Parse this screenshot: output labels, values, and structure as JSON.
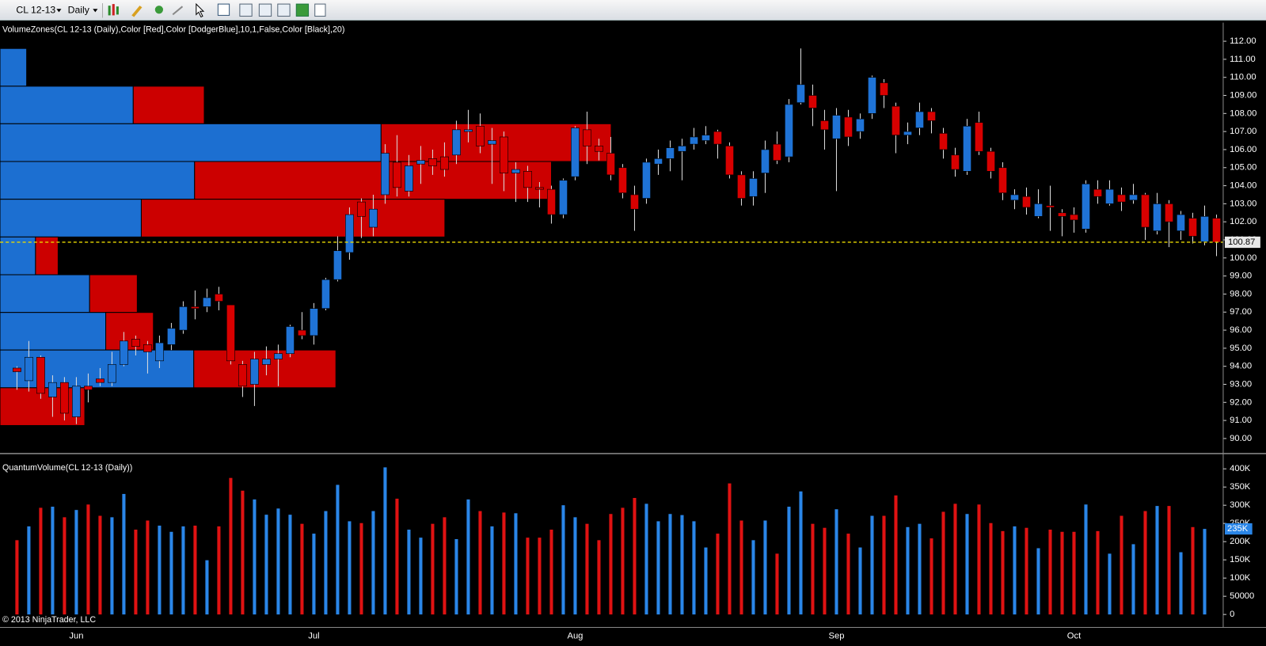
{
  "toolbar": {
    "instrument": "CL 12-13",
    "period": "Daily"
  },
  "footer": "© 2013 NinjaTrader, LLC",
  "chart_data": [
    {
      "type": "candlestick",
      "title": "VolumeZones(CL 12-13 (Daily),Color [Red],Color [DodgerBlue],10,1,False,Color [Black],20)",
      "categories": [
        null,
        null,
        null,
        null,
        null,
        "Jun",
        null,
        null,
        null,
        null,
        null,
        null,
        null,
        null,
        null,
        null,
        null,
        null,
        null,
        null,
        null,
        null,
        null,
        null,
        null,
        "Jul",
        null,
        null,
        null,
        null,
        null,
        null,
        null,
        null,
        null,
        null,
        null,
        null,
        null,
        null,
        null,
        null,
        null,
        null,
        null,
        null,
        null,
        "Aug",
        null,
        null,
        null,
        null,
        null,
        null,
        null,
        null,
        null,
        null,
        null,
        null,
        null,
        null,
        null,
        null,
        null,
        null,
        null,
        null,
        null,
        "Sep",
        null,
        null,
        null,
        null,
        null,
        null,
        null,
        null,
        null,
        null,
        null,
        null,
        null,
        null,
        null,
        null,
        null,
        null,
        null,
        "Oct",
        null,
        null,
        null,
        null,
        null,
        null,
        null,
        null,
        null,
        null,
        null,
        null
      ],
      "open": [
        93.9,
        93.2,
        94.5,
        92.3,
        93.1,
        91.2,
        92.9,
        93.3,
        93.1,
        94.1,
        95.5,
        95.2,
        94.3,
        95.2,
        96.0,
        97.3,
        97.3,
        98.0,
        97.4,
        94.1,
        93.0,
        94.1,
        94.4,
        94.7,
        96.0,
        95.7,
        97.2,
        98.8,
        100.3,
        103.1,
        101.7,
        103.5,
        105.3,
        103.7,
        105.2,
        105.5,
        105.6,
        105.7,
        107.0,
        107.3,
        106.3,
        106.7,
        104.7,
        104.8,
        103.9,
        103.8,
        102.4,
        104.5,
        107.1,
        106.2,
        105.8,
        105.0,
        103.5,
        103.3,
        105.2,
        105.5,
        105.9,
        106.3,
        106.5,
        107.0,
        106.2,
        104.6,
        103.4,
        104.7,
        106.3,
        105.6,
        108.6,
        109.0,
        107.6,
        106.6,
        107.8,
        107.0,
        108.0,
        109.7,
        108.4,
        106.8,
        107.2,
        108.1,
        106.9,
        105.7,
        104.8,
        107.5,
        105.9,
        105.0,
        103.2,
        103.4,
        102.3,
        102.9,
        102.5,
        102.4,
        101.6,
        103.8,
        103.0,
        103.5,
        103.2,
        103.5,
        101.5,
        103.0,
        101.5,
        102.2,
        100.9,
        102.2
      ],
      "high": [
        94.0,
        95.4,
        94.6,
        93.5,
        93.4,
        93.4,
        93.6,
        93.9,
        94.8,
        95.9,
        95.7,
        95.4,
        95.7,
        96.4,
        97.6,
        98.2,
        98.3,
        98.4,
        97.4,
        94.3,
        94.8,
        95.1,
        95.2,
        96.3,
        97.0,
        97.5,
        98.9,
        101.2,
        102.8,
        103.3,
        103.5,
        106.3,
        106.8,
        105.7,
        106.2,
        106.0,
        106.4,
        107.6,
        108.2,
        108.0,
        107.2,
        107.0,
        105.3,
        105.1,
        104.2,
        104.0,
        104.4,
        107.3,
        108.1,
        106.6,
        106.7,
        105.2,
        104.0,
        105.5,
        106.0,
        106.5,
        106.6,
        107.2,
        107.3,
        107.1,
        106.4,
        104.8,
        104.8,
        106.5,
        107.0,
        108.8,
        111.6,
        109.6,
        108.2,
        108.3,
        108.2,
        108.0,
        110.1,
        109.9,
        108.6,
        107.5,
        108.6,
        108.3,
        107.2,
        106.1,
        107.7,
        108.1,
        106.1,
        105.3,
        103.8,
        103.9,
        103.8,
        104.0,
        102.7,
        102.8,
        104.3,
        104.3,
        104.3,
        103.9,
        104.1,
        103.6,
        103.6,
        103.2,
        102.6,
        102.5,
        102.9,
        102.4
      ],
      "low": [
        92.7,
        92.6,
        92.2,
        91.2,
        91.0,
        90.8,
        92.0,
        92.9,
        92.9,
        94.0,
        94.6,
        93.6,
        93.9,
        94.9,
        95.8,
        96.6,
        97.0,
        97.1,
        94.1,
        92.3,
        91.8,
        93.5,
        92.9,
        94.5,
        95.5,
        95.2,
        97.1,
        98.7,
        99.9,
        101.1,
        101.2,
        103.0,
        103.4,
        103.4,
        104.1,
        104.6,
        104.5,
        105.2,
        106.4,
        105.8,
        104.1,
        103.7,
        103.1,
        103.1,
        102.8,
        101.9,
        102.2,
        104.3,
        105.2,
        105.4,
        104.3,
        103.3,
        101.5,
        103.0,
        104.6,
        104.8,
        104.3,
        106.0,
        106.3,
        105.5,
        104.4,
        102.9,
        102.9,
        103.6,
        105.2,
        105.3,
        108.5,
        107.3,
        106.0,
        103.7,
        106.2,
        106.6,
        107.7,
        108.3,
        105.8,
        106.3,
        106.8,
        106.9,
        105.5,
        104.5,
        104.6,
        105.7,
        104.4,
        103.2,
        102.7,
        102.4,
        102.2,
        101.5,
        101.2,
        101.4,
        101.4,
        103.0,
        102.9,
        102.6,
        103.0,
        101.0,
        101.3,
        100.6,
        101.0,
        100.8,
        100.7,
        100.1
      ],
      "close": [
        93.7,
        94.5,
        92.5,
        93.1,
        91.4,
        92.9,
        92.7,
        93.1,
        94.1,
        95.4,
        95.1,
        94.8,
        95.3,
        96.1,
        97.3,
        97.2,
        97.8,
        97.6,
        94.3,
        92.9,
        94.4,
        94.4,
        94.7,
        96.2,
        95.7,
        97.2,
        98.8,
        100.4,
        102.4,
        102.3,
        102.7,
        105.8,
        103.9,
        105.1,
        105.4,
        105.1,
        104.9,
        107.1,
        107.1,
        106.2,
        106.5,
        104.7,
        104.9,
        103.9,
        103.8,
        102.4,
        104.3,
        107.2,
        106.2,
        105.9,
        104.6,
        103.6,
        102.7,
        105.3,
        105.5,
        106.1,
        106.2,
        106.7,
        106.8,
        106.3,
        104.6,
        103.3,
        104.4,
        106.0,
        105.4,
        108.5,
        109.6,
        108.3,
        107.1,
        107.9,
        106.7,
        107.7,
        110.0,
        109.0,
        106.8,
        107.0,
        108.1,
        107.6,
        106.0,
        104.9,
        107.3,
        105.9,
        104.8,
        103.6,
        103.5,
        102.8,
        103.0,
        102.8,
        102.3,
        102.1,
        104.1,
        103.4,
        103.8,
        103.1,
        103.5,
        101.7,
        103.0,
        102.0,
        102.4,
        101.2,
        102.3,
        100.87
      ],
      "last_price_label": "100.87",
      "up_color": "#1f73d6",
      "down_color": "#d80000",
      "last_line_color": "#e8d800",
      "ylim": [
        89.3,
        113.03
      ],
      "yticks": [
        {
          "value": 90,
          "label": "90.00"
        },
        {
          "value": 91,
          "label": "91.00"
        },
        {
          "value": 92,
          "label": "92.00"
        },
        {
          "value": 93,
          "label": "93.00"
        },
        {
          "value": 94,
          "label": "94.00"
        },
        {
          "value": 95,
          "label": "95.00"
        },
        {
          "value": 96,
          "label": "96.00"
        },
        {
          "value": 97,
          "label": "97.00"
        },
        {
          "value": 98,
          "label": "98.00"
        },
        {
          "value": 99,
          "label": "99.00"
        },
        {
          "value": 100,
          "label": "100.00"
        },
        {
          "value": 101,
          "label": "101.00"
        },
        {
          "value": 102,
          "label": "102.00"
        },
        {
          "value": 103,
          "label": "103.00"
        },
        {
          "value": 104,
          "label": "104.00"
        },
        {
          "value": 105,
          "label": "105.00"
        },
        {
          "value": 106,
          "label": "106.00"
        },
        {
          "value": 107,
          "label": "107.00"
        },
        {
          "value": 108,
          "label": "108.00"
        },
        {
          "value": 109,
          "label": "109.00"
        },
        {
          "value": 110,
          "label": "110.00"
        },
        {
          "value": 111,
          "label": "111.00"
        },
        {
          "value": 112,
          "label": "112.00"
        }
      ],
      "zones": {
        "edges": [
          111.6,
          109.51,
          107.43,
          105.34,
          103.25,
          101.16,
          99.07,
          96.98,
          94.9,
          92.81,
          90.72
        ],
        "up": [
          33,
          165,
          472,
          241,
          175,
          44,
          111,
          131,
          240,
          0
        ],
        "down": [
          0,
          88,
          285,
          442,
          376,
          28,
          59,
          59,
          176,
          105
        ],
        "up_color": "#1c6fd1",
        "down_color": "#cc0000"
      }
    },
    {
      "type": "bar",
      "title": "QuantumVolume(CL 12-13 (Daily))",
      "values": [
        204000,
        242000,
        293000,
        296000,
        267000,
        287000,
        302000,
        271000,
        267000,
        331000,
        233000,
        258000,
        244000,
        227000,
        242000,
        244000,
        149000,
        242000,
        375000,
        340000,
        316000,
        274000,
        291000,
        274000,
        249000,
        222000,
        284000,
        356000,
        256000,
        251000,
        284000,
        404000,
        318000,
        233000,
        211000,
        249000,
        267000,
        207000,
        316000,
        284000,
        242000,
        280000,
        278000,
        211000,
        211000,
        233000,
        300000,
        267000,
        249000,
        204000,
        276000,
        293000,
        320000,
        304000,
        256000,
        276000,
        273000,
        256000,
        184000,
        222000,
        360000,
        258000,
        204000,
        258000,
        167000,
        296000,
        338000,
        249000,
        238000,
        289000,
        222000,
        184000,
        271000,
        271000,
        327000,
        240000,
        249000,
        209000,
        282000,
        304000,
        276000,
        302000,
        251000,
        229000,
        242000,
        238000,
        182000,
        233000,
        227000,
        227000,
        302000,
        229000,
        167000,
        271000,
        193000,
        284000,
        298000,
        298000,
        171000,
        240000,
        235000,
        null
      ],
      "value_labels": [
        null,
        null,
        null,
        null,
        null,
        null,
        null,
        null,
        null,
        null,
        null,
        null,
        null,
        null,
        null,
        null,
        null,
        null,
        null,
        null,
        null,
        null,
        null,
        null,
        null,
        null,
        null,
        null,
        null,
        null,
        null,
        null,
        null,
        null,
        null,
        null,
        null,
        null,
        null,
        null,
        null,
        null,
        null,
        null,
        null,
        null,
        null,
        null,
        null,
        null,
        null,
        null,
        null,
        null,
        null,
        null,
        null,
        null,
        null,
        null,
        null,
        null,
        null,
        null,
        null,
        null,
        null,
        null,
        null,
        null,
        null,
        null,
        null,
        null,
        null,
        null,
        null,
        null,
        null,
        null,
        null,
        null,
        null,
        null,
        null,
        null,
        null,
        null,
        null,
        null,
        null,
        null,
        null,
        null,
        null,
        null,
        null,
        null,
        null,
        null,
        "235K",
        null
      ],
      "up_color": "#2a86e8",
      "down_color": "#e01212",
      "ylim": [
        0,
        433000
      ],
      "yticks": [
        0,
        {
          "value": 50000,
          "label": "50000"
        },
        {
          "value": 100000,
          "label": "100K"
        },
        {
          "value": 150000,
          "label": "150K"
        },
        {
          "value": 200000,
          "label": "200K"
        },
        {
          "value": 250000,
          "label": "250K"
        },
        {
          "value": 300000,
          "label": "300K"
        },
        {
          "value": 350000,
          "label": "350K"
        },
        {
          "value": 400000,
          "label": "400K"
        }
      ]
    }
  ]
}
